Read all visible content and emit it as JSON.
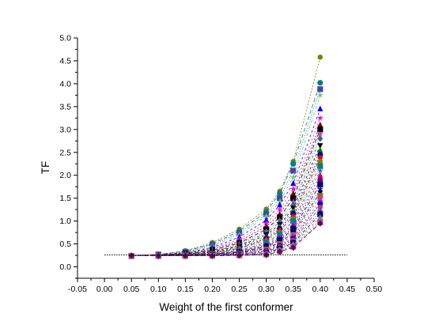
{
  "chart_data": {
    "type": "scatter",
    "title": "",
    "xlabel": "Weight of the first conformer",
    "ylabel": "TF",
    "xlim": [
      -0.05,
      0.5
    ],
    "ylim": [
      -0.25,
      5.0
    ],
    "x_ticks": [
      "-0.05",
      "0.00",
      "0.05",
      "0.10",
      "0.15",
      "0.20",
      "0.25",
      "0.30",
      "0.35",
      "0.40",
      "0.45",
      "0.50"
    ],
    "y_ticks": [
      "0.0",
      "0.5",
      "1.0",
      "1.5",
      "2.0",
      "2.5",
      "3.0",
      "3.5",
      "4.0",
      "4.5",
      "5.0"
    ],
    "grid": false,
    "legend": "none",
    "reference_line": {
      "y": 0.26,
      "x_range": [
        0.0,
        0.45
      ],
      "style": "dotted"
    },
    "x": [
      0.05,
      0.1,
      0.15,
      0.2,
      0.25,
      0.3,
      0.325,
      0.35,
      0.4
    ],
    "series": [
      {
        "values": [
          0.24,
          0.27,
          0.35,
          0.53,
          0.82,
          1.26,
          1.65,
          2.3,
          4.58
        ],
        "color": "#808000",
        "marker": "hexagon"
      },
      {
        "values": [
          0.24,
          0.27,
          0.34,
          0.5,
          0.78,
          1.2,
          1.6,
          2.25,
          4.02
        ],
        "color": "#008080",
        "marker": "circle"
      },
      {
        "values": [
          0.24,
          0.27,
          0.33,
          0.48,
          0.74,
          1.15,
          1.5,
          2.1,
          3.88
        ],
        "color": "#4444aa",
        "marker": "square"
      },
      {
        "values": [
          0.24,
          0.26,
          0.32,
          0.45,
          0.7,
          1.1,
          1.42,
          1.95,
          3.75
        ],
        "color": "#66cc66",
        "marker": "star"
      },
      {
        "values": [
          0.24,
          0.26,
          0.31,
          0.42,
          0.65,
          1.02,
          1.35,
          1.82,
          3.45
        ],
        "color": "#0000ff",
        "marker": "triangle"
      },
      {
        "values": [
          0.24,
          0.26,
          0.3,
          0.4,
          0.6,
          0.95,
          1.25,
          1.7,
          3.25
        ],
        "color": "#ff00ff",
        "marker": "star"
      },
      {
        "values": [
          0.24,
          0.26,
          0.3,
          0.38,
          0.56,
          0.88,
          1.15,
          1.6,
          3.1
        ],
        "color": "#800000",
        "marker": "triangle"
      },
      {
        "values": [
          0.24,
          0.25,
          0.29,
          0.36,
          0.52,
          0.82,
          1.08,
          1.5,
          3.0
        ],
        "color": "#000000",
        "marker": "square"
      },
      {
        "values": [
          0.24,
          0.25,
          0.29,
          0.35,
          0.5,
          0.78,
          1.02,
          1.42,
          2.9
        ],
        "color": "#cc33cc",
        "marker": "star"
      },
      {
        "values": [
          0.24,
          0.25,
          0.28,
          0.34,
          0.47,
          0.74,
          0.97,
          1.35,
          2.8
        ],
        "color": "#336699",
        "marker": "diamond"
      },
      {
        "values": [
          0.24,
          0.25,
          0.28,
          0.33,
          0.45,
          0.7,
          0.92,
          1.28,
          2.65
        ],
        "color": "#000000",
        "marker": "triangle-down"
      },
      {
        "values": [
          0.24,
          0.25,
          0.28,
          0.32,
          0.43,
          0.66,
          0.88,
          1.22,
          2.55
        ],
        "color": "#008000",
        "marker": "triangle"
      },
      {
        "values": [
          0.24,
          0.25,
          0.27,
          0.31,
          0.41,
          0.62,
          0.83,
          1.16,
          2.45
        ],
        "color": "#0000aa",
        "marker": "circle"
      },
      {
        "values": [
          0.24,
          0.25,
          0.27,
          0.3,
          0.4,
          0.59,
          0.79,
          1.1,
          2.38
        ],
        "color": "#ff0000",
        "marker": "diamond"
      },
      {
        "values": [
          0.24,
          0.25,
          0.27,
          0.3,
          0.38,
          0.56,
          0.75,
          1.05,
          2.3
        ],
        "color": "#808000",
        "marker": "hexagon"
      },
      {
        "values": [
          0.24,
          0.25,
          0.27,
          0.29,
          0.36,
          0.53,
          0.71,
          1.0,
          2.2
        ],
        "color": "#008080",
        "marker": "square"
      },
      {
        "values": [
          0.24,
          0.24,
          0.26,
          0.29,
          0.35,
          0.5,
          0.67,
          0.95,
          2.1
        ],
        "color": "#3366cc",
        "marker": "star"
      },
      {
        "values": [
          0.24,
          0.24,
          0.26,
          0.28,
          0.34,
          0.48,
          0.64,
          0.9,
          2.0
        ],
        "color": "#cc0066",
        "marker": "triangle"
      },
      {
        "values": [
          0.24,
          0.24,
          0.26,
          0.28,
          0.33,
          0.46,
          0.61,
          0.86,
          1.9
        ],
        "color": "#800080",
        "marker": "circle"
      },
      {
        "values": [
          0.24,
          0.24,
          0.26,
          0.28,
          0.32,
          0.44,
          0.58,
          0.82,
          1.8
        ],
        "color": "#000066",
        "marker": "square"
      },
      {
        "values": [
          0.24,
          0.24,
          0.25,
          0.27,
          0.31,
          0.42,
          0.56,
          0.78,
          1.7
        ],
        "color": "#0000ff",
        "marker": "star"
      },
      {
        "values": [
          0.24,
          0.24,
          0.25,
          0.27,
          0.3,
          0.4,
          0.53,
          0.74,
          1.62
        ],
        "color": "#000000",
        "marker": "triangle-down"
      },
      {
        "values": [
          0.24,
          0.24,
          0.25,
          0.27,
          0.29,
          0.38,
          0.5,
          0.7,
          1.55
        ],
        "color": "#996633",
        "marker": "square"
      },
      {
        "values": [
          0.24,
          0.24,
          0.25,
          0.26,
          0.28,
          0.36,
          0.48,
          0.66,
          1.45
        ],
        "color": "#ff00ff",
        "marker": "diamond"
      },
      {
        "values": [
          0.24,
          0.24,
          0.25,
          0.26,
          0.28,
          0.34,
          0.46,
          0.62,
          1.38
        ],
        "color": "#0000cc",
        "marker": "circle"
      },
      {
        "values": [
          0.24,
          0.24,
          0.25,
          0.26,
          0.27,
          0.33,
          0.44,
          0.58,
          1.3
        ],
        "color": "#cc3366",
        "marker": "hexagon"
      },
      {
        "values": [
          0.24,
          0.24,
          0.24,
          0.25,
          0.27,
          0.31,
          0.42,
          0.55,
          1.22
        ],
        "color": "#3333cc",
        "marker": "star"
      },
      {
        "values": [
          0.24,
          0.24,
          0.24,
          0.25,
          0.26,
          0.3,
          0.4,
          0.52,
          1.15
        ],
        "color": "#000080",
        "marker": "square"
      },
      {
        "values": [
          0.24,
          0.24,
          0.24,
          0.25,
          0.26,
          0.29,
          0.38,
          0.49,
          1.08
        ],
        "color": "#808000",
        "marker": "triangle"
      },
      {
        "values": [
          0.24,
          0.24,
          0.24,
          0.25,
          0.25,
          0.28,
          0.36,
          0.46,
          1.02
        ],
        "color": "#9966cc",
        "marker": "circle"
      },
      {
        "values": [
          0.24,
          0.24,
          0.24,
          0.24,
          0.25,
          0.27,
          0.34,
          0.44,
          0.97
        ],
        "color": "#996666",
        "marker": "square"
      },
      {
        "values": [
          0.24,
          0.24,
          0.24,
          0.24,
          0.25,
          0.26,
          0.33,
          0.42,
          0.95
        ],
        "color": "#660066",
        "marker": "diamond"
      }
    ]
  }
}
